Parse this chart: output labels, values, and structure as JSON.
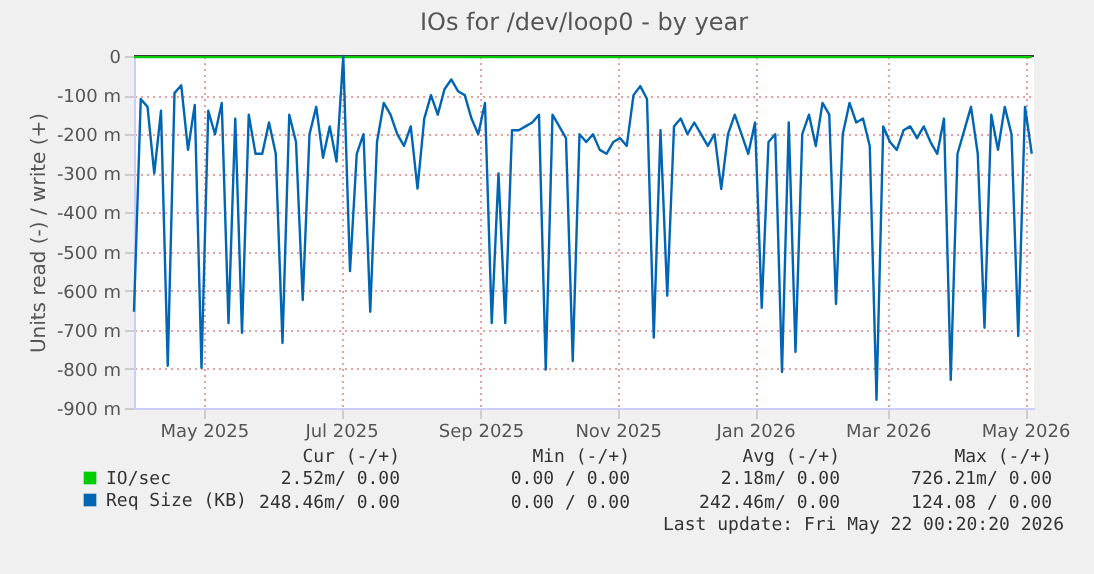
{
  "chart_data": {
    "type": "line",
    "title": "IOs for /dev/loop0 - by year",
    "ylabel": "Units read (-) / write (+)",
    "xlim": [
      "2025-03-31",
      "2026-05-05"
    ],
    "ylim": [
      -900,
      0
    ],
    "xticks": [
      {
        "value": "2025-05-01",
        "label": "May 2025"
      },
      {
        "value": "2025-07-01",
        "label": "Jul 2025"
      },
      {
        "value": "2025-09-01",
        "label": "Sep 2025"
      },
      {
        "value": "2025-11-01",
        "label": "Nov 2025"
      },
      {
        "value": "2026-01-01",
        "label": "Jan 2026"
      },
      {
        "value": "2026-03-01",
        "label": "Mar 2026"
      },
      {
        "value": "2026-05-01",
        "label": "May 2026"
      }
    ],
    "yticks": [
      {
        "value": -900,
        "label": "-900 m"
      },
      {
        "value": -800,
        "label": "-800 m"
      },
      {
        "value": -700,
        "label": "-700 m"
      },
      {
        "value": -600,
        "label": "-600 m"
      },
      {
        "value": -500,
        "label": "-500 m"
      },
      {
        "value": -400,
        "label": "-400 m"
      },
      {
        "value": -300,
        "label": "-300 m"
      },
      {
        "value": -200,
        "label": "-200 m"
      },
      {
        "value": -100,
        "label": "-100 m"
      },
      0
    ],
    "grid": true,
    "legend": "bottom",
    "marker": "none",
    "ref_lines": [
      {
        "axis": "y",
        "value": 0,
        "color": "#000000"
      }
    ],
    "x": [
      "2025-03-31",
      "2025-04-03",
      "2025-04-06",
      "2025-04-09",
      "2025-04-12",
      "2025-04-15",
      "2025-04-18",
      "2025-04-21",
      "2025-04-24",
      "2025-04-27",
      "2025-04-30",
      "2025-05-03",
      "2025-05-06",
      "2025-05-09",
      "2025-05-12",
      "2025-05-15",
      "2025-05-18",
      "2025-05-21",
      "2025-05-24",
      "2025-05-27",
      "2025-05-30",
      "2025-06-02",
      "2025-06-05",
      "2025-06-08",
      "2025-06-11",
      "2025-06-14",
      "2025-06-17",
      "2025-06-20",
      "2025-06-23",
      "2025-06-26",
      "2025-06-29",
      "2025-07-02",
      "2025-07-05",
      "2025-07-08",
      "2025-07-11",
      "2025-07-14",
      "2025-07-17",
      "2025-07-20",
      "2025-07-23",
      "2025-07-26",
      "2025-07-29",
      "2025-08-01",
      "2025-08-04",
      "2025-08-07",
      "2025-08-10",
      "2025-08-13",
      "2025-08-16",
      "2025-08-19",
      "2025-08-22",
      "2025-08-25",
      "2025-08-28",
      "2025-08-31",
      "2025-09-03",
      "2025-09-06",
      "2025-09-09",
      "2025-09-12",
      "2025-09-15",
      "2025-09-18",
      "2025-09-21",
      "2025-09-24",
      "2025-09-27",
      "2025-09-30",
      "2025-10-03",
      "2025-10-06",
      "2025-10-09",
      "2025-10-12",
      "2025-10-15",
      "2025-10-18",
      "2025-10-21",
      "2025-10-24",
      "2025-10-27",
      "2025-10-30",
      "2025-11-02",
      "2025-11-05",
      "2025-11-08",
      "2025-11-11",
      "2025-11-14",
      "2025-11-17",
      "2025-11-20",
      "2025-11-23",
      "2025-11-26",
      "2025-11-29",
      "2025-12-02",
      "2025-12-05",
      "2025-12-08",
      "2025-12-11",
      "2025-12-14",
      "2025-12-17",
      "2025-12-20",
      "2025-12-23",
      "2025-12-26",
      "2025-12-29",
      "2026-01-01",
      "2026-01-04",
      "2026-01-07",
      "2026-01-10",
      "2026-01-13",
      "2026-01-16",
      "2026-01-19",
      "2026-01-22",
      "2026-01-25",
      "2026-01-28",
      "2026-01-31",
      "2026-02-03",
      "2026-02-06",
      "2026-02-09",
      "2026-02-12",
      "2026-02-15",
      "2026-02-18",
      "2026-02-21",
      "2026-02-24",
      "2026-02-27",
      "2026-03-02",
      "2026-03-05",
      "2026-03-08",
      "2026-03-11",
      "2026-03-14",
      "2026-03-17",
      "2026-03-20",
      "2026-03-23",
      "2026-03-26",
      "2026-03-29",
      "2026-04-01",
      "2026-04-04",
      "2026-04-07",
      "2026-04-10",
      "2026-04-13",
      "2026-04-16",
      "2026-04-19",
      "2026-04-22",
      "2026-04-25",
      "2026-04-28",
      "2026-05-01",
      "2026-05-04"
    ],
    "series": [
      {
        "name": "IO/sec",
        "color": "#00cc00",
        "x": [
          "2025-03-31",
          "2025-05-01",
          "2025-06-01",
          "2025-07-01",
          "2025-08-01",
          "2025-09-01",
          "2025-10-01",
          "2025-11-01",
          "2025-12-01",
          "2026-01-01",
          "2026-02-01",
          "2026-03-01",
          "2026-04-01",
          "2026-05-04"
        ],
        "values": [
          -3,
          -3,
          -3,
          -3,
          -3,
          -3,
          -3,
          -3,
          -3,
          -3,
          -3,
          -3,
          -3,
          -3
        ]
      },
      {
        "name": "Req Size (KB)",
        "color": "#0066b3",
        "values": [
          -654,
          -110,
          -130,
          -300,
          -140,
          -792,
          -95,
          -75,
          -240,
          -125,
          -797,
          -140,
          -200,
          -120,
          -683,
          -160,
          -708,
          -150,
          -250,
          -250,
          -170,
          -250,
          -734,
          -150,
          -220,
          -624,
          -200,
          -130,
          -260,
          -180,
          -270,
          0,
          -550,
          -250,
          -200,
          -654,
          -220,
          -120,
          -150,
          -200,
          -230,
          -180,
          -339,
          -160,
          -100,
          -150,
          -85,
          -60,
          -90,
          -100,
          -160,
          -200,
          -120,
          -683,
          -300,
          -683,
          -190,
          -190,
          -180,
          -170,
          -150,
          -802,
          -150,
          -180,
          -210,
          -780,
          -200,
          -220,
          -200,
          -240,
          -250,
          -220,
          -210,
          -230,
          -100,
          -77,
          -110,
          -720,
          -190,
          -613,
          -180,
          -160,
          -200,
          -170,
          -200,
          -230,
          -200,
          -340,
          -200,
          -150,
          -200,
          -250,
          -170,
          -644,
          -220,
          -200,
          -808,
          -170,
          -757,
          -200,
          -150,
          -230,
          -120,
          -150,
          -634,
          -200,
          -120,
          -170,
          -160,
          -230,
          -879,
          -180,
          -220,
          -240,
          -190,
          -180,
          -210,
          -180,
          -220,
          -250,
          -160,
          -828,
          -250,
          -190,
          -130,
          -250,
          -695,
          -150,
          -240,
          -130,
          -200,
          -716,
          -130,
          -250
        ]
      }
    ],
    "annotations": [
      "Cur (-/+)",
      "Min (-/+)",
      "Avg (-/+)",
      "Max (-/+)",
      "2.52m/  0.00",
      "0.00 /  0.00",
      "2.18m/  0.00",
      "726.21m/  0.00",
      "248.46m/  0.00",
      "0.00 /  0.00",
      "242.46m/  0.00",
      "124.08 /  0.00",
      "Last update: Fri May 22 00:20:20 2026"
    ]
  }
}
